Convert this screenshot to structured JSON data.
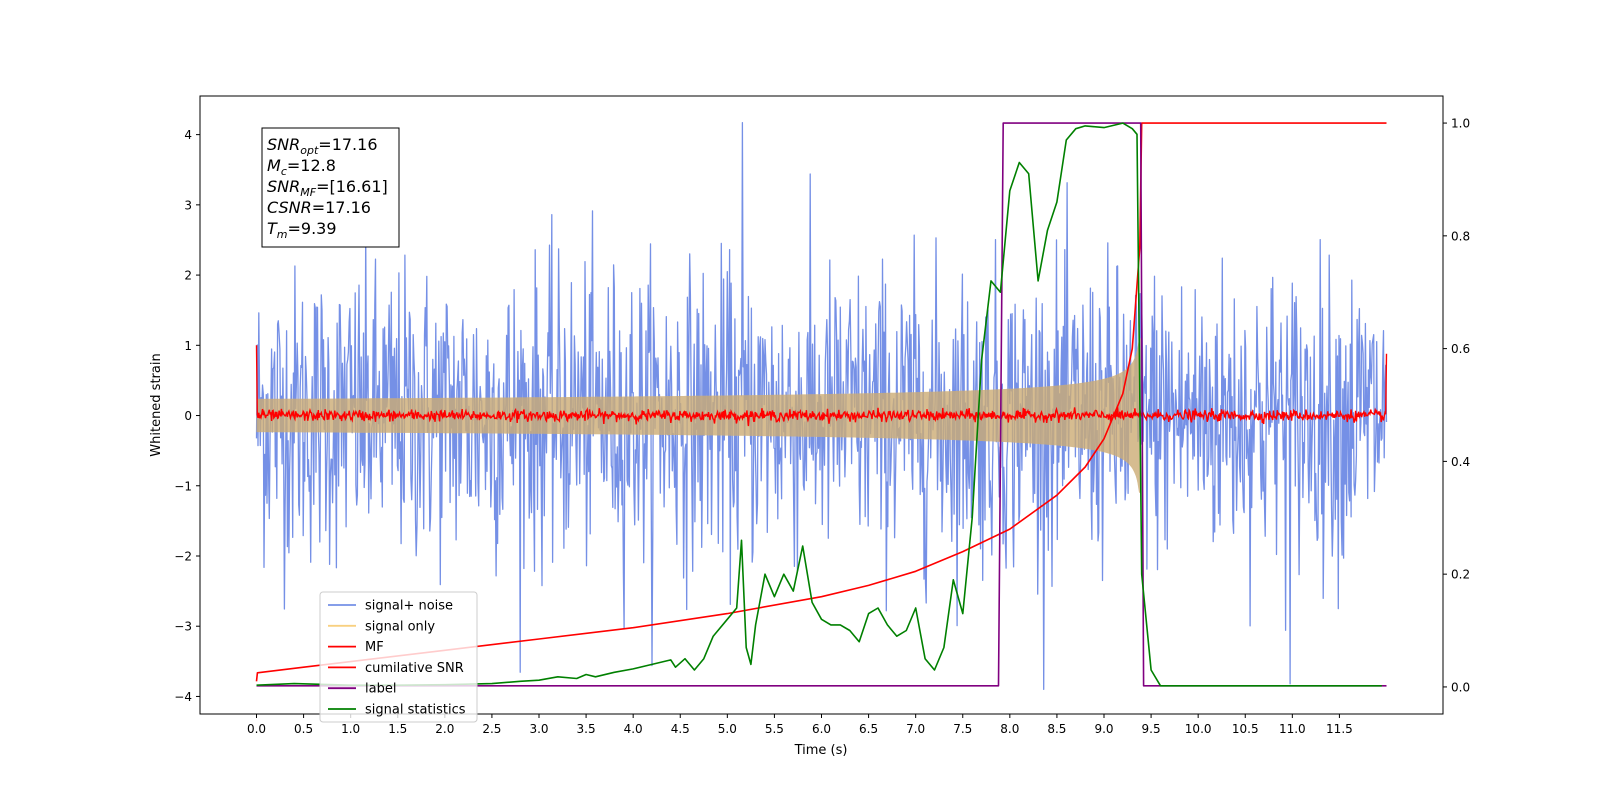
{
  "chart_data": {
    "type": "line",
    "xlabel": "Time (s)",
    "ylabel": "Whitened strain",
    "xlim": [
      -0.6,
      12.6
    ],
    "ylim": [
      -4.25,
      4.55
    ],
    "y2lim": [
      -0.048,
      1.048
    ],
    "xticks": [
      0.0,
      0.5,
      1.0,
      1.5,
      2.0,
      2.5,
      3.0,
      3.5,
      4.0,
      4.5,
      5.0,
      5.5,
      6.0,
      6.5,
      7.0,
      7.5,
      8.0,
      8.5,
      9.0,
      9.5,
      10.0,
      10.5,
      11.0,
      11.5
    ],
    "xtick_labels": [
      "0.0",
      "0.5",
      "1.0",
      "1.5",
      "2.0",
      "2.5",
      "3.0",
      "3.5",
      "4.0",
      "4.5",
      "5.0",
      "5.5",
      "6.0",
      "6.5",
      "7.0",
      "7.5",
      "8.0",
      "8.5",
      "9.0",
      "9.5",
      "10.0",
      "10.5",
      "11.0",
      "11.5"
    ],
    "yticks": [
      4,
      3,
      2,
      1,
      0,
      -1,
      -2,
      -3,
      -4
    ],
    "ytick_labels": [
      "4",
      "3",
      "2",
      "1",
      "0",
      "−1",
      "−2",
      "−3",
      "−4"
    ],
    "y2ticks": [
      1.0,
      0.8,
      0.6,
      0.4,
      0.2,
      0.0
    ],
    "y2tick_labels": [
      "1.0",
      "0.8",
      "0.6",
      "0.4",
      "0.2",
      "0.0"
    ],
    "grid": false,
    "legend_position": "lower-left",
    "annotation": [
      {
        "base": "SNR",
        "sub": "opt",
        "rest": "=17.16"
      },
      {
        "base": "M",
        "sub": "c",
        "rest": "=12.8"
      },
      {
        "base": "SNR",
        "sub": "MF",
        "rest": "=[16.61]"
      },
      {
        "base": "CSNR",
        "sub": "",
        "rest": "=17.16"
      },
      {
        "base": "T",
        "sub": "m",
        "rest": "=9.39"
      }
    ],
    "series": [
      {
        "name": "signal+ noise",
        "color": "#7590e6",
        "axis": "left",
        "kind": "gaussian-noise",
        "x_range": [
          0,
          12.0
        ],
        "std": 1.05,
        "peak_max": 4.17,
        "peak_min": -3.82
      },
      {
        "name": "signal only",
        "color": "#f8d080",
        "axis": "left",
        "kind": "chirp",
        "x_range": [
          0,
          9.39
        ],
        "merger_time": 9.39,
        "peak_amplitude": 1.1
      },
      {
        "name": "MF",
        "color": "#ff0000",
        "axis": "left",
        "kind": "noise",
        "x_range": [
          0,
          12.0
        ],
        "std": 0.04,
        "edge_values": [
          1.0,
          0.88
        ]
      },
      {
        "name": "cumilative SNR",
        "color": "#ff0000",
        "axis": "right",
        "x": [
          0.0,
          0.01,
          0.5,
          1.0,
          2.0,
          3.0,
          4.0,
          5.0,
          6.0,
          6.5,
          7.0,
          7.5,
          8.0,
          8.5,
          8.8,
          9.0,
          9.2,
          9.3,
          9.38,
          9.4,
          12.0
        ],
        "y": [
          0.01,
          0.025,
          0.035,
          0.045,
          0.065,
          0.085,
          0.105,
          0.13,
          0.16,
          0.18,
          0.205,
          0.24,
          0.28,
          0.34,
          0.39,
          0.44,
          0.52,
          0.6,
          0.78,
          1.0,
          1.0
        ]
      },
      {
        "name": "label",
        "color": "#800080",
        "axis": "right",
        "x": [
          0.0,
          7.88,
          7.93,
          9.39,
          9.42,
          12.0
        ],
        "y": [
          0.002,
          0.002,
          1.0,
          1.0,
          0.002,
          0.002
        ]
      },
      {
        "name": "signal statistics",
        "color": "#008000",
        "axis": "right",
        "x": [
          0.0,
          0.4,
          1.0,
          1.5,
          2.0,
          2.5,
          2.8,
          3.0,
          3.2,
          3.4,
          3.5,
          3.6,
          3.8,
          4.0,
          4.2,
          4.4,
          4.45,
          4.55,
          4.65,
          4.75,
          4.85,
          5.0,
          5.1,
          5.15,
          5.2,
          5.25,
          5.3,
          5.4,
          5.5,
          5.6,
          5.7,
          5.8,
          5.9,
          6.0,
          6.1,
          6.2,
          6.3,
          6.4,
          6.5,
          6.6,
          6.7,
          6.8,
          6.9,
          7.0,
          7.1,
          7.2,
          7.3,
          7.4,
          7.5,
          7.6,
          7.7,
          7.8,
          7.9,
          8.0,
          8.1,
          8.2,
          8.3,
          8.4,
          8.5,
          8.6,
          8.7,
          8.8,
          9.0,
          9.2,
          9.3,
          9.35,
          9.4,
          9.5,
          9.6,
          10.0,
          11.0,
          11.95
        ],
        "y": [
          0.003,
          0.006,
          0.003,
          0.003,
          0.004,
          0.006,
          0.01,
          0.012,
          0.018,
          0.015,
          0.022,
          0.018,
          0.026,
          0.032,
          0.04,
          0.048,
          0.035,
          0.05,
          0.03,
          0.05,
          0.09,
          0.12,
          0.14,
          0.26,
          0.07,
          0.04,
          0.11,
          0.2,
          0.16,
          0.2,
          0.17,
          0.25,
          0.15,
          0.12,
          0.11,
          0.11,
          0.1,
          0.08,
          0.13,
          0.14,
          0.11,
          0.09,
          0.1,
          0.14,
          0.05,
          0.03,
          0.07,
          0.19,
          0.13,
          0.3,
          0.58,
          0.72,
          0.7,
          0.88,
          0.93,
          0.91,
          0.72,
          0.81,
          0.86,
          0.97,
          0.99,
          0.995,
          0.992,
          1.0,
          0.99,
          0.98,
          0.2,
          0.03,
          0.002,
          0.002,
          0.002,
          0.002
        ]
      }
    ]
  }
}
